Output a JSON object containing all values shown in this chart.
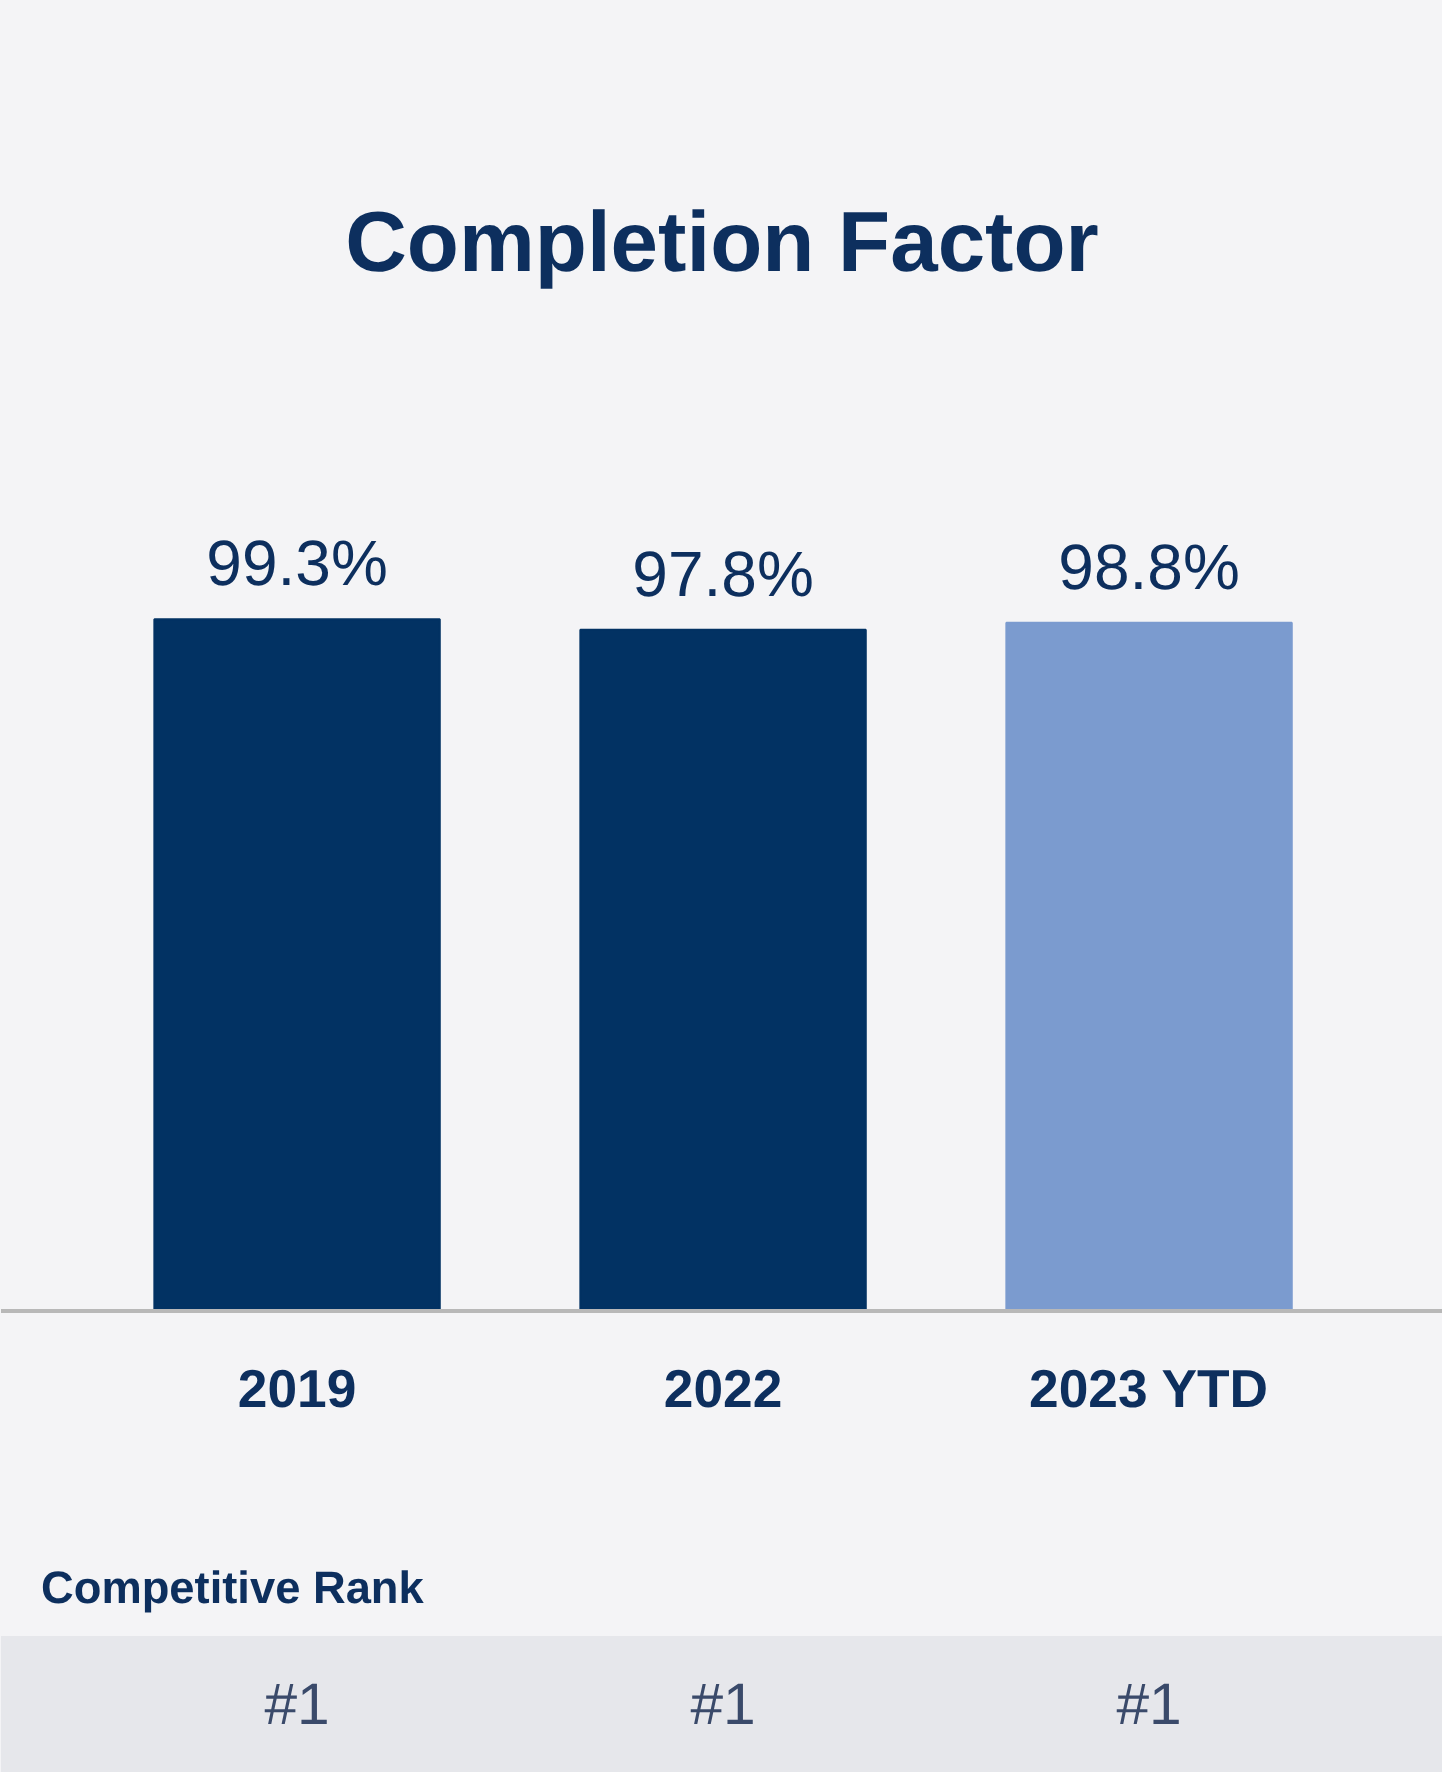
{
  "chart_data": {
    "type": "bar",
    "title": "Completion Factor",
    "categories": [
      "2019",
      "2022",
      "2023 YTD"
    ],
    "values": [
      99.3,
      97.8,
      98.8
    ],
    "colors": [
      "#023263",
      "#023263",
      "#7b9bcf"
    ],
    "value_labels": [
      "99.3%",
      "97.8%",
      "98.8%"
    ],
    "annotations": [
      "Competitive Rank",
      "#1",
      "#1",
      "#1"
    ]
  }
}
